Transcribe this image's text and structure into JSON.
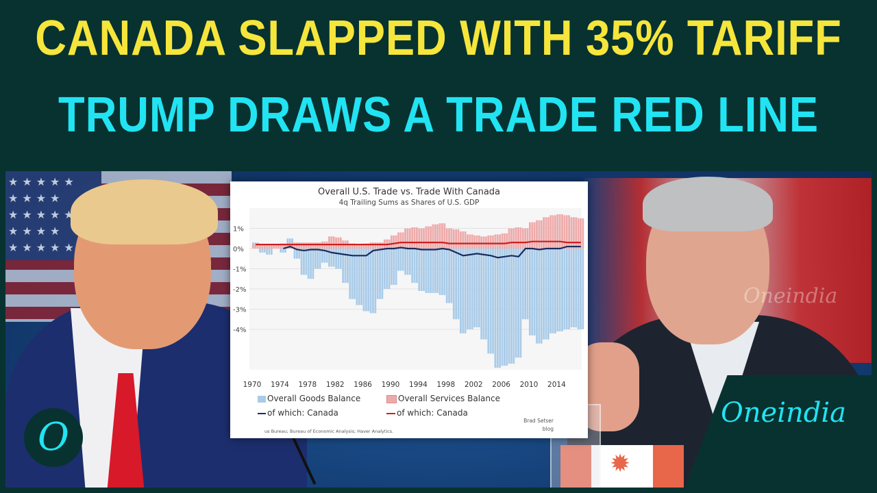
{
  "headline": {
    "line1": "CANADA SLAPPED WITH 35% TARIFF",
    "line2": "TRUMP DRAWS A TRADE RED LINE",
    "line1_color": "#f6e53b",
    "line2_color": "#22e3f2"
  },
  "branding": {
    "badge_letter": "O",
    "logo_text": "Oneindia",
    "watermark": "Oneindia"
  },
  "chart_data": {
    "type": "area",
    "title": "Overall U.S. Trade vs. Trade With Canada",
    "subtitle": "4q Trailing Sums as Shares of U.S. GDP",
    "x_ticks": [
      "1970",
      "1974",
      "1978",
      "1982",
      "1986",
      "1990",
      "1994",
      "1998",
      "2002",
      "2006",
      "2010",
      "2014"
    ],
    "y_ticks": [
      "1%",
      "0%",
      "-1%",
      "-2%",
      "-3%",
      "-4%"
    ],
    "ylim": [
      -6,
      2
    ],
    "xlim": [
      1970,
      2017
    ],
    "grid": true,
    "legend_position": "bottom",
    "x": [
      1970,
      1971,
      1972,
      1973,
      1974,
      1975,
      1976,
      1977,
      1978,
      1979,
      1980,
      1981,
      1982,
      1983,
      1984,
      1985,
      1986,
      1987,
      1988,
      1989,
      1990,
      1991,
      1992,
      1993,
      1994,
      1995,
      1996,
      1997,
      1998,
      1999,
      2000,
      2001,
      2002,
      2003,
      2004,
      2005,
      2006,
      2007,
      2008,
      2009,
      2010,
      2011,
      2012,
      2013,
      2014,
      2015,
      2016,
      2017
    ],
    "series": [
      {
        "name": "Overall Goods Balance",
        "kind": "bar",
        "color": "#a9cbe8",
        "values": [
          0.3,
          -0.2,
          -0.3,
          0.0,
          -0.2,
          0.5,
          -0.5,
          -1.3,
          -1.5,
          -1.0,
          -0.7,
          -0.9,
          -1.0,
          -1.7,
          -2.5,
          -2.8,
          -3.1,
          -3.2,
          -2.5,
          -2.0,
          -1.8,
          -1.1,
          -1.3,
          -1.7,
          -2.1,
          -2.2,
          -2.2,
          -2.3,
          -2.7,
          -3.5,
          -4.2,
          -4.0,
          -3.9,
          -4.5,
          -5.2,
          -5.9,
          -5.8,
          -5.7,
          -5.4,
          -3.5,
          -4.3,
          -4.7,
          -4.5,
          -4.2,
          -4.1,
          -4.0,
          -3.9,
          -4.0
        ]
      },
      {
        "name": "of which: Canada",
        "kind": "line",
        "color": "#1a2b5c",
        "values": [
          null,
          null,
          null,
          null,
          0.0,
          0.1,
          -0.05,
          -0.1,
          -0.05,
          -0.05,
          -0.1,
          -0.2,
          -0.25,
          -0.3,
          -0.35,
          -0.35,
          -0.35,
          -0.1,
          -0.05,
          0.0,
          0.0,
          0.05,
          0.0,
          0.0,
          -0.05,
          -0.05,
          -0.05,
          0.0,
          -0.05,
          -0.2,
          -0.35,
          -0.3,
          -0.25,
          -0.3,
          -0.35,
          -0.45,
          -0.4,
          -0.35,
          -0.4,
          0.0,
          0.0,
          -0.05,
          0.0,
          0.0,
          0.0,
          0.1,
          0.1,
          0.1
        ]
      },
      {
        "name": "Overall Services Balance",
        "kind": "bar",
        "color": "#eeaaaa",
        "values": [
          0.2,
          0.2,
          0.2,
          0.2,
          0.25,
          0.3,
          0.3,
          0.3,
          0.3,
          0.3,
          0.35,
          0.6,
          0.55,
          0.4,
          0.25,
          0.2,
          0.25,
          0.3,
          0.3,
          0.45,
          0.65,
          0.8,
          1.0,
          1.05,
          1.0,
          1.1,
          1.2,
          1.25,
          1.0,
          0.95,
          0.85,
          0.7,
          0.65,
          0.6,
          0.65,
          0.7,
          0.75,
          1.0,
          1.05,
          1.0,
          1.3,
          1.4,
          1.55,
          1.65,
          1.7,
          1.65,
          1.55,
          1.5
        ]
      },
      {
        "name": "of which: Canada",
        "kind": "line",
        "color": "#cc2020",
        "values": [
          0.2,
          0.2,
          0.2,
          0.2,
          0.2,
          0.2,
          0.2,
          0.2,
          0.2,
          0.2,
          0.2,
          0.2,
          0.2,
          0.2,
          0.2,
          0.2,
          0.2,
          0.2,
          0.2,
          0.2,
          0.25,
          0.3,
          0.3,
          0.3,
          0.3,
          0.3,
          0.3,
          0.3,
          0.25,
          0.25,
          0.25,
          0.25,
          0.25,
          0.25,
          0.25,
          0.25,
          0.25,
          0.3,
          0.3,
          0.3,
          0.35,
          0.35,
          0.35,
          0.35,
          0.35,
          0.3,
          0.3,
          0.3
        ]
      }
    ],
    "legend": [
      "Overall Goods Balance",
      "of which: Canada",
      "Overall Services Balance",
      "of which: Canada"
    ],
    "source": "us Bureau; Bureau of Economic Analysis; Haver Analytics.",
    "byline": [
      "Brad Setser",
      "blog"
    ]
  }
}
